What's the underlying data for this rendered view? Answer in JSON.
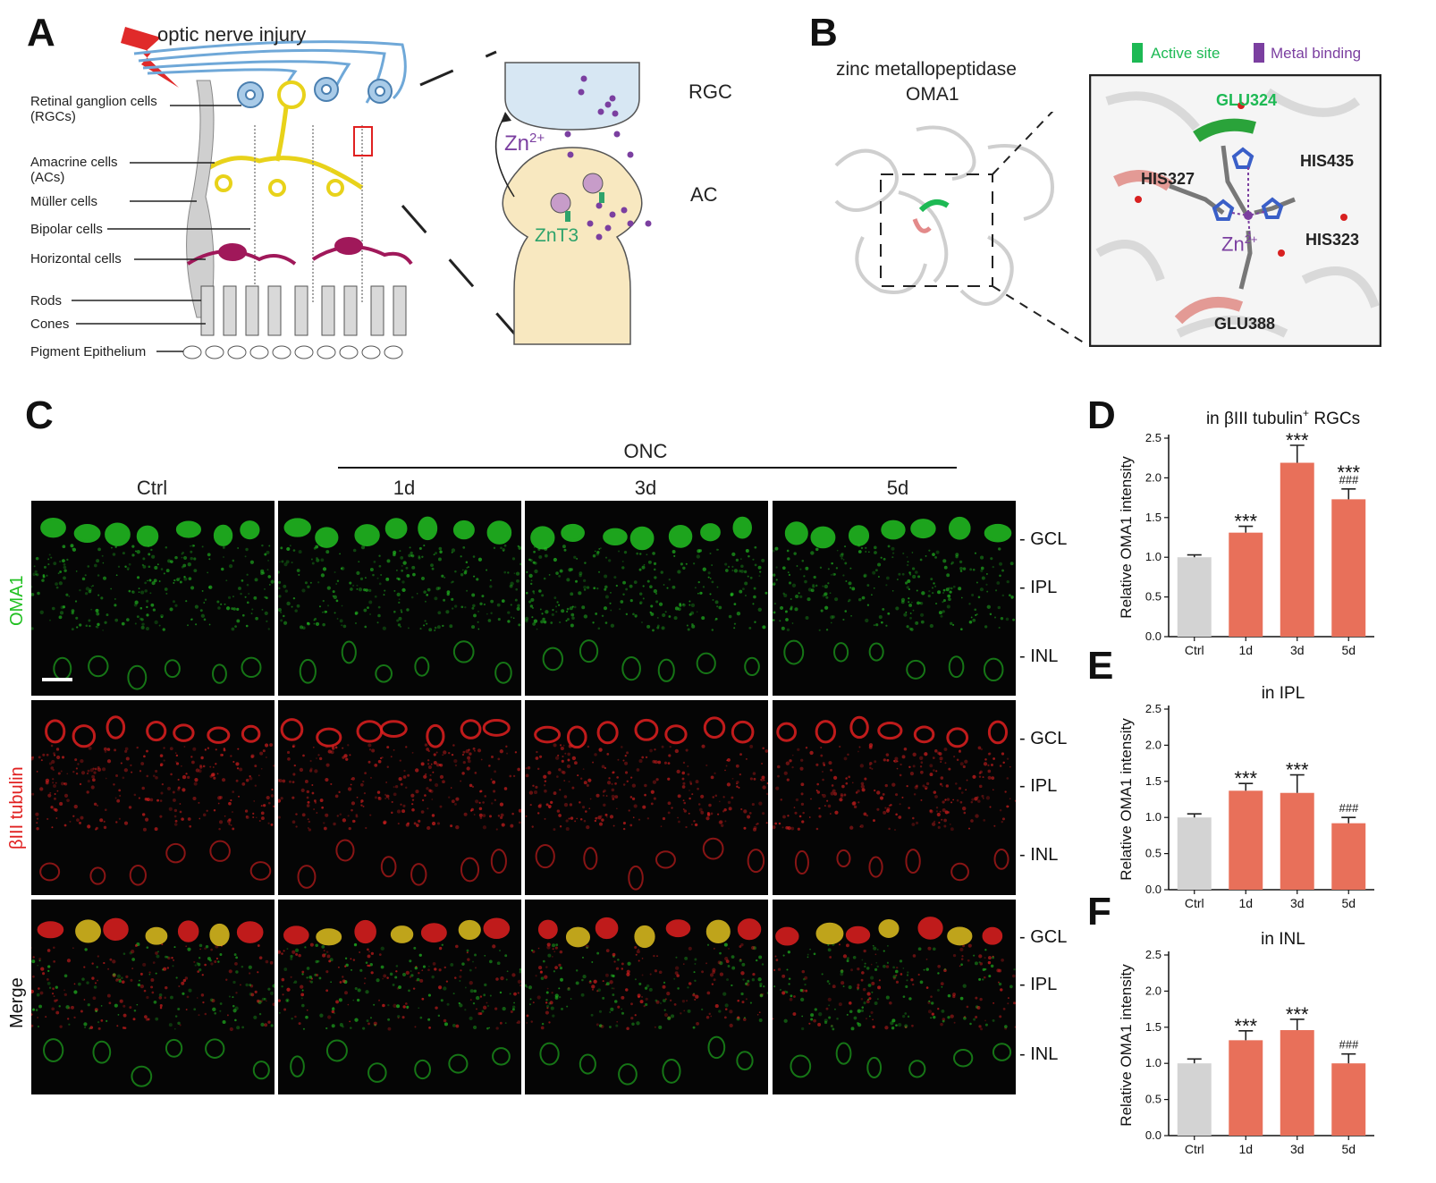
{
  "panelA": {
    "label": "A",
    "injury": "optic nerve injury",
    "cell_labels": [
      "Retinal ganglion cells\n(RGCs)",
      "Amacrine cells\n(ACs)",
      "Müller cells",
      "Bipolar cells",
      "Horizontal cells",
      "Rods",
      "Cones",
      "Pigment Epithelium"
    ],
    "synapse": {
      "rgc": "RGC",
      "ac": "AC",
      "zn": "Zn",
      "zn_sup": "2+",
      "znt3": "ZnT3"
    }
  },
  "panelB": {
    "label": "B",
    "title_line1": "zinc metallopeptidase",
    "title_line2": "OMA1",
    "legend_active": "Active site",
    "legend_metal": "Metal binding",
    "residues": [
      "GLU324",
      "HIS435",
      "HIS327",
      "HIS323",
      "GLU388"
    ],
    "zn": "Zn",
    "zn_sup": "2+",
    "colors": {
      "active": "#1db954",
      "metal": "#7b3fa0"
    }
  },
  "panelC": {
    "label": "C",
    "group": "ONC",
    "columns": [
      "Ctrl",
      "1d",
      "3d",
      "5d"
    ],
    "rows": [
      "OMA1",
      "βIII tubulin",
      "Merge"
    ],
    "layers": [
      "GCL",
      "IPL",
      "INL"
    ],
    "colors": {
      "green": "#22c022",
      "red": "#e02020"
    }
  },
  "chart_data": [
    {
      "panel": "D",
      "type": "bar",
      "title": "in βIII tubulin",
      "title_sup": "+",
      "title_tail": " RGCs",
      "ylabel": "Relative OMA1 intensity",
      "categories": [
        "Ctrl",
        "1d",
        "3d",
        "5d"
      ],
      "values": [
        1.0,
        1.31,
        2.19,
        1.73
      ],
      "errors": [
        0.03,
        0.08,
        0.22,
        0.13
      ],
      "colors": [
        "#d3d3d3",
        "#e8705a",
        "#e8705a",
        "#e8705a"
      ],
      "sig_star": [
        "",
        "***",
        "***",
        "***"
      ],
      "sig_hash": [
        "",
        "",
        "",
        "###"
      ],
      "ylim": [
        0,
        2.5
      ],
      "yticks": [
        "0.0",
        "0.5",
        "1.0",
        "1.5",
        "2.0",
        "2.5"
      ]
    },
    {
      "panel": "E",
      "type": "bar",
      "title": "in IPL",
      "ylabel": "Relative OMA1 intensity",
      "categories": [
        "Ctrl",
        "1d",
        "3d",
        "5d"
      ],
      "values": [
        1.0,
        1.37,
        1.34,
        0.92
      ],
      "errors": [
        0.05,
        0.1,
        0.25,
        0.08
      ],
      "colors": [
        "#d3d3d3",
        "#e8705a",
        "#e8705a",
        "#e8705a"
      ],
      "sig_star": [
        "",
        "***",
        "***",
        ""
      ],
      "sig_hash": [
        "",
        "",
        "",
        "###"
      ],
      "ylim": [
        0,
        2.5
      ],
      "yticks": [
        "0.0",
        "0.5",
        "1.0",
        "1.5",
        "2.0",
        "2.5"
      ]
    },
    {
      "panel": "F",
      "type": "bar",
      "title": "in INL",
      "ylabel": "Relative OMA1 intensity",
      "categories": [
        "Ctrl",
        "1d",
        "3d",
        "5d"
      ],
      "values": [
        1.0,
        1.32,
        1.46,
        1.0
      ],
      "errors": [
        0.06,
        0.13,
        0.15,
        0.13
      ],
      "colors": [
        "#d3d3d3",
        "#e8705a",
        "#e8705a",
        "#e8705a"
      ],
      "sig_star": [
        "",
        "***",
        "***",
        ""
      ],
      "sig_hash": [
        "",
        "",
        "",
        "###"
      ],
      "ylim": [
        0,
        2.5
      ],
      "yticks": [
        "0.0",
        "0.5",
        "1.0",
        "1.5",
        "2.0",
        "2.5"
      ]
    }
  ]
}
